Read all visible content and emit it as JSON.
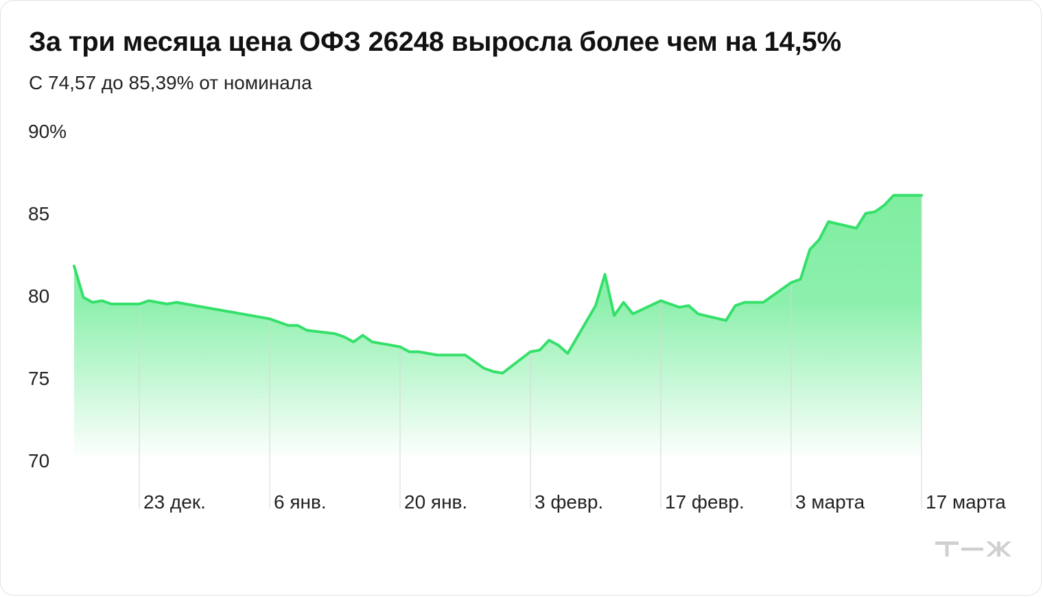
{
  "title": "За три месяца цена ОФЗ 26248 выросла более чем на 14,5%",
  "subtitle": "С 74,57 до 85,39% от номинала",
  "logo": "Т—Ж",
  "colors": {
    "line": "#35e06a",
    "fill_top": "#7fedA0",
    "fill_bottom": "#ffffff",
    "gridline": "#d6d6d6",
    "text": "#222222"
  },
  "chart_data": {
    "type": "area",
    "title": "За три месяца цена ОФЗ 26248 выросла более чем на 14,5%",
    "subtitle": "С 74,57 до 85,39% от номинала",
    "xlabel": "",
    "ylabel": "",
    "ylim": [
      70,
      90
    ],
    "y_ticks": [
      "90%",
      "85",
      "80",
      "75",
      "70"
    ],
    "y_tick_values": [
      90,
      85,
      80,
      75,
      70
    ],
    "x_tick_labels": [
      "23 дек.",
      "6 янв.",
      "20 янв.",
      "3 февр.",
      "17 февр.",
      "3 марта",
      "17 марта"
    ],
    "x_tick_dates": [
      "2024-12-23",
      "2025-01-06",
      "2025-01-20",
      "2025-02-03",
      "2025-02-17",
      "2025-03-03",
      "2025-03-17"
    ],
    "grid": "vertical at x ticks",
    "legend": "none",
    "series": [
      {
        "x": [
          "2024-12-16",
          "2024-12-17",
          "2024-12-18",
          "2024-12-19",
          "2024-12-20",
          "2024-12-23",
          "2024-12-24",
          "2024-12-25",
          "2024-12-26",
          "2024-12-27",
          "2025-01-06",
          "2025-01-08",
          "2025-01-09",
          "2025-01-10",
          "2025-01-13",
          "2025-01-14",
          "2025-01-15",
          "2025-01-16",
          "2025-01-17",
          "2025-01-20",
          "2025-01-21",
          "2025-01-22",
          "2025-01-23",
          "2025-01-24",
          "2025-01-27",
          "2025-01-28",
          "2025-01-29",
          "2025-01-30",
          "2025-01-31",
          "2025-02-03",
          "2025-02-04",
          "2025-02-05",
          "2025-02-06",
          "2025-02-07",
          "2025-02-10",
          "2025-02-11",
          "2025-02-12",
          "2025-02-13",
          "2025-02-14",
          "2025-02-17",
          "2025-02-18",
          "2025-02-19",
          "2025-02-20",
          "2025-02-21",
          "2025-02-24",
          "2025-02-25",
          "2025-02-26",
          "2025-02-27",
          "2025-02-28",
          "2025-03-03",
          "2025-03-04",
          "2025-03-05",
          "2025-03-06",
          "2025-03-07",
          "2025-03-10",
          "2025-03-11",
          "2025-03-12",
          "2025-03-13",
          "2025-03-14",
          "2025-03-17"
        ],
        "values": [
          81.8,
          79.9,
          79.6,
          79.7,
          79.5,
          79.5,
          79.7,
          79.6,
          79.5,
          79.6,
          78.6,
          78.2,
          78.2,
          77.9,
          77.7,
          77.5,
          77.2,
          77.6,
          77.2,
          76.9,
          76.6,
          76.6,
          76.5,
          76.4,
          76.4,
          76.0,
          75.6,
          75.4,
          75.3,
          76.6,
          76.7,
          77.3,
          77.0,
          76.5,
          79.4,
          81.3,
          78.8,
          79.6,
          78.9,
          79.7,
          79.5,
          79.3,
          79.4,
          78.9,
          78.5,
          79.4,
          79.6,
          79.6,
          79.6,
          80.8,
          81.0,
          82.8,
          83.4,
          84.5,
          84.1,
          85.0,
          85.1,
          85.5,
          86.1,
          86.1
        ]
      }
    ]
  }
}
